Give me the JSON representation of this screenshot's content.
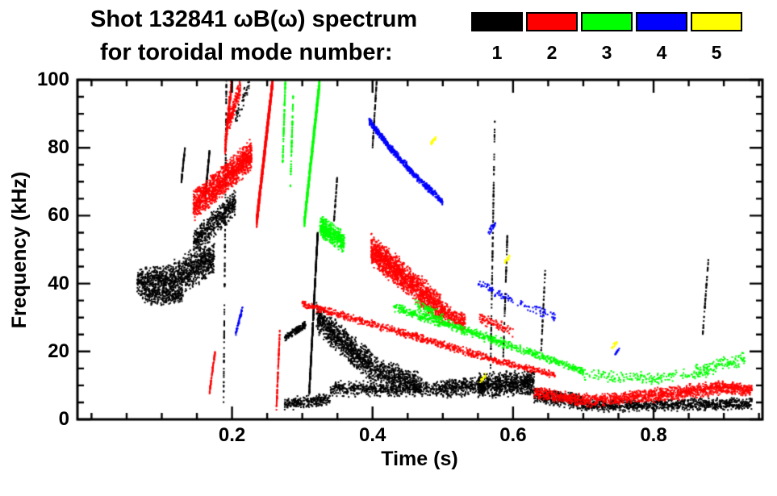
{
  "title": {
    "line1": "Shot 132841 ωB(ω) spectrum",
    "line2": "for toroidal mode number:"
  },
  "legend": {
    "entries": [
      {
        "label": "1",
        "color": "#000000",
        "name": "mode-1"
      },
      {
        "label": "2",
        "color": "#ff0000",
        "name": "mode-2"
      },
      {
        "label": "3",
        "color": "#00ff00",
        "name": "mode-3"
      },
      {
        "label": "4",
        "color": "#0000ff",
        "name": "mode-4"
      },
      {
        "label": "5",
        "color": "#ffff00",
        "name": "mode-5"
      }
    ]
  },
  "axes": {
    "xlabel": "Time (s)",
    "ylabel": "Frequency (kHz)",
    "xlim": [
      -0.02,
      0.955
    ],
    "ylim": [
      0,
      100
    ],
    "xticks": [
      {
        "v": 0.2,
        "label": "0.2"
      },
      {
        "v": 0.4,
        "label": "0.4"
      },
      {
        "v": 0.6,
        "label": "0.6"
      },
      {
        "v": 0.8,
        "label": "0.8"
      }
    ],
    "yticks": [
      {
        "v": 0,
        "label": "0"
      },
      {
        "v": 20,
        "label": "20"
      },
      {
        "v": 40,
        "label": "40"
      },
      {
        "v": 60,
        "label": "60"
      },
      {
        "v": 80,
        "label": "80"
      },
      {
        "v": 100,
        "label": "100"
      }
    ],
    "x_minor_step": 0.05,
    "y_minor_step": 5
  },
  "chart_data": {
    "type": "scatter",
    "title": "Shot 132841 ωB(ω) spectrum for toroidal mode number",
    "xlabel": "Time (s)",
    "ylabel": "Frequency (kHz)",
    "xlim": [
      -0.02,
      0.955
    ],
    "ylim": [
      0,
      100
    ],
    "legend_position": "top-right",
    "grid": false,
    "band_format": "[t_start_s, t_end_s, f_start_kHz, f_end_kHz, f_spread_kHz, n_points]",
    "series": [
      {
        "name": "n=1",
        "color": "#000000",
        "bands": [
          [
            0.065,
            0.115,
            40,
            41,
            5,
            500
          ],
          [
            0.115,
            0.175,
            41,
            48,
            6,
            700
          ],
          [
            0.075,
            0.13,
            36,
            36.5,
            3,
            250
          ],
          [
            0.145,
            0.205,
            52,
            64,
            4.5,
            500
          ],
          [
            0.162,
            0.168,
            66,
            79,
            0.8,
            120
          ],
          [
            0.128,
            0.133,
            70,
            80,
            0.8,
            60
          ],
          [
            0.188,
            0.192,
            5,
            100,
            0.5,
            140
          ],
          [
            0.205,
            0.225,
            88,
            100,
            3,
            50
          ],
          [
            0.31,
            0.322,
            8,
            55,
            1,
            650
          ],
          [
            0.32,
            0.4,
            30,
            15,
            5,
            900
          ],
          [
            0.4,
            0.47,
            15,
            10,
            4,
            500
          ],
          [
            0.34,
            0.5,
            9,
            9,
            2.5,
            600
          ],
          [
            0.275,
            0.34,
            4.5,
            6,
            2,
            260
          ],
          [
            0.275,
            0.305,
            24,
            28,
            1.2,
            150
          ],
          [
            0.345,
            0.35,
            58,
            72,
            0.6,
            45
          ],
          [
            0.4,
            0.406,
            80,
            100,
            0.6,
            60
          ],
          [
            0.5,
            0.56,
            9,
            10,
            3,
            350
          ],
          [
            0.55,
            0.63,
            10,
            11,
            4,
            750
          ],
          [
            0.63,
            0.7,
            7,
            5,
            2.5,
            420
          ],
          [
            0.7,
            0.94,
            4,
            4.5,
            2,
            950
          ],
          [
            0.568,
            0.574,
            15,
            88,
            0.6,
            130
          ],
          [
            0.586,
            0.592,
            18,
            55,
            0.6,
            80
          ],
          [
            0.64,
            0.646,
            20,
            45,
            0.6,
            45
          ],
          [
            0.87,
            0.878,
            25,
            47,
            0.6,
            55
          ]
        ]
      },
      {
        "name": "n=2",
        "color": "#ff0000",
        "bands": [
          [
            0.145,
            0.185,
            63,
            70,
            5,
            600
          ],
          [
            0.185,
            0.228,
            70,
            78,
            5,
            700
          ],
          [
            0.19,
            0.2,
            80,
            100,
            3,
            260
          ],
          [
            0.196,
            0.212,
            88,
            98,
            3,
            150
          ],
          [
            0.235,
            0.258,
            58,
            100,
            2,
            1500
          ],
          [
            0.398,
            0.445,
            50,
            42,
            5,
            800
          ],
          [
            0.445,
            0.5,
            42,
            32,
            5,
            700
          ],
          [
            0.5,
            0.532,
            32,
            28,
            3,
            220
          ],
          [
            0.3,
            0.4,
            34,
            28,
            1.3,
            260
          ],
          [
            0.4,
            0.5,
            28,
            22,
            1.3,
            260
          ],
          [
            0.5,
            0.6,
            22,
            16,
            1.3,
            260
          ],
          [
            0.6,
            0.66,
            16,
            13,
            1.1,
            130
          ],
          [
            0.63,
            0.7,
            8,
            5.5,
            2,
            320
          ],
          [
            0.7,
            0.8,
            5.5,
            7,
            2.2,
            420
          ],
          [
            0.8,
            0.9,
            7,
            9.5,
            2.4,
            520
          ],
          [
            0.9,
            0.94,
            9.5,
            8.5,
            2,
            220
          ],
          [
            0.263,
            0.268,
            2,
            26,
            0.6,
            110
          ],
          [
            0.168,
            0.176,
            8,
            20,
            1,
            70
          ],
          [
            0.55,
            0.6,
            30,
            26,
            2,
            90
          ]
        ]
      },
      {
        "name": "n=3",
        "color": "#00ff00",
        "bands": [
          [
            0.272,
            0.276,
            75,
            100,
            0.6,
            95
          ],
          [
            0.283,
            0.287,
            68,
            95,
            0.6,
            75
          ],
          [
            0.303,
            0.325,
            58,
            100,
            2,
            950
          ],
          [
            0.325,
            0.36,
            57,
            52,
            3.5,
            480
          ],
          [
            0.43,
            0.52,
            33,
            27,
            1.6,
            260
          ],
          [
            0.52,
            0.62,
            27,
            20,
            1.6,
            260
          ],
          [
            0.62,
            0.7,
            20,
            14,
            1.3,
            210
          ],
          [
            0.46,
            0.5,
            34,
            30,
            2,
            90
          ],
          [
            0.7,
            0.8,
            13,
            12,
            2,
            110
          ],
          [
            0.8,
            0.88,
            12,
            14,
            2,
            90
          ],
          [
            0.86,
            0.93,
            14,
            18,
            2.5,
            130
          ]
        ]
      },
      {
        "name": "n=4",
        "color": "#0000ff",
        "bands": [
          [
            0.395,
            0.425,
            88,
            80,
            1.2,
            230
          ],
          [
            0.425,
            0.46,
            80,
            72,
            1.2,
            230
          ],
          [
            0.46,
            0.5,
            72,
            64,
            1.2,
            210
          ],
          [
            0.205,
            0.215,
            25,
            33,
            1,
            60
          ],
          [
            0.55,
            0.6,
            40,
            35,
            1.5,
            60
          ],
          [
            0.6,
            0.66,
            35,
            30,
            1.5,
            50
          ],
          [
            0.565,
            0.575,
            55,
            58,
            1,
            25
          ],
          [
            0.745,
            0.752,
            19,
            21,
            0.6,
            14
          ]
        ]
      },
      {
        "name": "n=5",
        "color": "#ffff00",
        "bands": [
          [
            0.482,
            0.49,
            81,
            83,
            0.8,
            26
          ],
          [
            0.553,
            0.561,
            11,
            13,
            0.8,
            20
          ],
          [
            0.588,
            0.596,
            46,
            48,
            0.8,
            18
          ],
          [
            0.74,
            0.748,
            21,
            23,
            0.8,
            15
          ]
        ]
      }
    ]
  }
}
